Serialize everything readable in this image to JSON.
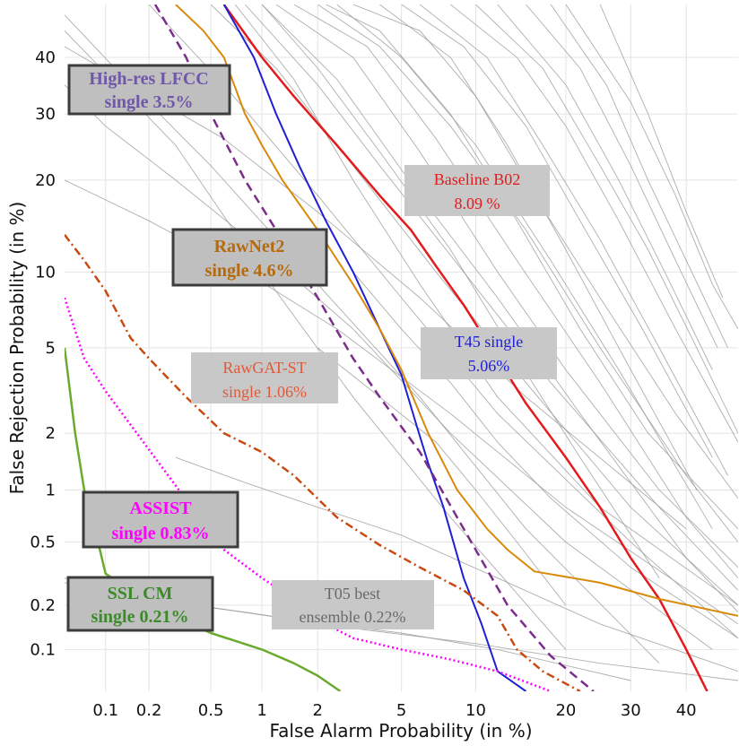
{
  "chart_data": {
    "type": "line",
    "title": "",
    "xlabel": "False Alarm Probability (in %)",
    "ylabel": "False Rejection Probability (in %)",
    "x_scale": "probit",
    "y_scale": "probit",
    "xlim": [
      0.05,
      50
    ],
    "ylim": [
      0.05,
      50
    ],
    "grid": true,
    "x_ticks": [
      {
        "value": 0.1,
        "label": "0.1"
      },
      {
        "value": 0.2,
        "label": "0.2"
      },
      {
        "value": 0.5,
        "label": "0.5"
      },
      {
        "value": 1,
        "label": "1"
      },
      {
        "value": 2,
        "label": "2"
      },
      {
        "value": 5,
        "label": "5"
      },
      {
        "value": 10,
        "label": "10"
      },
      {
        "value": 20,
        "label": "20"
      },
      {
        "value": 30,
        "label": "30"
      },
      {
        "value": 40,
        "label": "40"
      }
    ],
    "y_ticks": [
      {
        "value": 0.1,
        "label": "0.1"
      },
      {
        "value": 0.2,
        "label": "0.2"
      },
      {
        "value": 0.5,
        "label": "0.5"
      },
      {
        "value": 1,
        "label": "1"
      },
      {
        "value": 2,
        "label": "2"
      },
      {
        "value": 5,
        "label": "5"
      },
      {
        "value": 10,
        "label": "10"
      },
      {
        "value": 20,
        "label": "20"
      },
      {
        "value": 30,
        "label": "30"
      },
      {
        "value": 40,
        "label": "40"
      }
    ],
    "highlighted_series": [
      {
        "color": "#e41a1c",
        "dash": "solid",
        "width": 2.5,
        "x": [
          0.6,
          1.0,
          1.5,
          2.5,
          4,
          5.5,
          7,
          9,
          12,
          15,
          20,
          25,
          30,
          35,
          40,
          44
        ],
        "y": [
          50,
          40,
          33,
          25,
          18,
          14,
          10.5,
          7.5,
          4.5,
          2.8,
          1.5,
          0.8,
          0.4,
          0.22,
          0.1,
          0.05
        ]
      },
      {
        "color": "#1f1fd6",
        "dash": "solid",
        "width": 2,
        "x": [
          0.6,
          0.9,
          1.2,
          1.6,
          2.2,
          3,
          4,
          5,
          5.8,
          6.5,
          7.5,
          9,
          10.5,
          12,
          15
        ],
        "y": [
          50,
          40,
          30,
          22,
          15,
          10,
          6,
          3.8,
          2.2,
          1.4,
          0.8,
          0.3,
          0.15,
          0.07,
          0.05
        ]
      },
      {
        "color": "#d98a0b",
        "dash": "solid",
        "width": 2,
        "x": [
          0.3,
          0.45,
          0.6,
          0.8,
          1.0,
          1.3,
          2,
          3,
          4,
          5,
          6.5,
          8.5,
          11,
          13,
          16,
          25,
          35,
          50
        ],
        "y": [
          50,
          45,
          40,
          30,
          25,
          20,
          14,
          9,
          6,
          4,
          2,
          1,
          0.6,
          0.45,
          0.33,
          0.28,
          0.22,
          0.17
        ]
      },
      {
        "color": "#7a2d8a",
        "dash": "dash",
        "width": 2.5,
        "x": [
          0.22,
          0.35,
          0.5,
          0.8,
          1.2,
          2,
          3,
          4,
          6,
          9,
          13,
          18,
          24
        ],
        "y": [
          50,
          40,
          30,
          20,
          14,
          8,
          4.5,
          3,
          1.6,
          0.6,
          0.2,
          0.09,
          0.05
        ]
      },
      {
        "color": "#c94a10",
        "dash": "dashdot",
        "width": 2.5,
        "x": [
          0.05,
          0.07,
          0.1,
          0.15,
          0.2,
          0.35,
          0.6,
          1.0,
          1.5,
          2.5,
          4,
          6,
          9,
          12,
          14,
          17,
          22
        ],
        "y": [
          13.5,
          11,
          8.5,
          5.5,
          4.5,
          3,
          2,
          1.6,
          1.2,
          0.7,
          0.48,
          0.35,
          0.25,
          0.17,
          0.1,
          0.07,
          0.05
        ]
      },
      {
        "color": "#ff00ff",
        "dash": "dot",
        "width": 2.5,
        "x": [
          0.05,
          0.07,
          0.1,
          0.15,
          0.25,
          0.4,
          0.6,
          1.0,
          1.5,
          2,
          3,
          5,
          8,
          12,
          18
        ],
        "y": [
          8,
          4.5,
          3.2,
          2.2,
          1.3,
          0.75,
          0.45,
          0.3,
          0.22,
          0.16,
          0.12,
          0.1,
          0.085,
          0.07,
          0.05
        ]
      },
      {
        "color": "#6aab2e",
        "dash": "solid",
        "width": 2.5,
        "x": [
          0.05,
          0.06,
          0.07,
          0.08,
          0.1,
          0.15,
          0.25,
          0.5,
          1,
          1.5,
          2,
          2.6
        ],
        "y": [
          5,
          2,
          1.0,
          0.7,
          0.32,
          0.25,
          0.18,
          0.13,
          0.1,
          0.08,
          0.065,
          0.05
        ]
      }
    ],
    "background_series_color": "#9a9a9a",
    "background_series": [
      {
        "x": [
          0.05,
          0.3,
          1,
          3,
          8,
          20
        ],
        "y": [
          45,
          25,
          10,
          3,
          0.7,
          0.1
        ]
      },
      {
        "x": [
          0.05,
          0.15,
          0.5,
          2,
          6,
          15,
          35
        ],
        "y": [
          48,
          35,
          22,
          9,
          3,
          0.6,
          0.08
        ]
      },
      {
        "x": [
          0.2,
          0.6,
          2,
          5,
          12,
          30,
          50
        ],
        "y": [
          50,
          35,
          18,
          8,
          2.5,
          0.5,
          0.12
        ]
      },
      {
        "x": [
          0.5,
          1.2,
          3,
          7,
          15,
          30,
          50
        ],
        "y": [
          50,
          38,
          22,
          10,
          3.5,
          0.8,
          0.2
        ]
      },
      {
        "x": [
          0.8,
          2,
          4,
          9,
          18,
          35,
          50
        ],
        "y": [
          50,
          35,
          22,
          10,
          3.5,
          0.8,
          0.25
        ]
      },
      {
        "x": [
          1,
          2.5,
          6,
          12,
          22,
          40,
          50
        ],
        "y": [
          50,
          36,
          18,
          8,
          2.5,
          0.4,
          0.18
        ]
      },
      {
        "x": [
          1.2,
          3,
          6,
          12,
          20,
          35,
          50
        ],
        "y": [
          50,
          40,
          24,
          10,
          4,
          1.0,
          0.35
        ]
      },
      {
        "x": [
          1.5,
          3.5,
          7,
          14,
          25,
          40,
          50
        ],
        "y": [
          50,
          42,
          26,
          11,
          3.5,
          0.7,
          0.3
        ]
      },
      {
        "x": [
          2,
          4,
          8,
          15,
          25,
          40,
          50
        ],
        "y": [
          50,
          42,
          28,
          14,
          5,
          1.2,
          0.5
        ]
      },
      {
        "x": [
          2.5,
          5,
          10,
          18,
          28,
          45
        ],
        "y": [
          50,
          40,
          25,
          11,
          4,
          0.6
        ]
      },
      {
        "x": [
          3,
          6,
          10,
          16,
          25,
          38,
          50
        ],
        "y": [
          50,
          45,
          33,
          18,
          8,
          2.5,
          0.9
        ]
      },
      {
        "x": [
          4,
          8,
          13,
          20,
          30,
          42
        ],
        "y": [
          50,
          40,
          25,
          12,
          4,
          1.0
        ]
      },
      {
        "x": [
          5,
          9,
          15,
          22,
          32,
          45
        ],
        "y": [
          50,
          42,
          28,
          15,
          6,
          1.5
        ]
      },
      {
        "x": [
          6,
          11,
          17,
          25,
          35,
          48
        ],
        "y": [
          50,
          40,
          25,
          13,
          5,
          1.2
        ]
      },
      {
        "x": [
          8,
          14,
          20,
          28,
          38,
          50
        ],
        "y": [
          50,
          40,
          28,
          15,
          6,
          1.8
        ]
      },
      {
        "x": [
          10,
          17,
          25,
          33,
          42,
          50
        ],
        "y": [
          50,
          38,
          22,
          12,
          5,
          2.0
        ]
      },
      {
        "x": [
          12,
          20,
          28,
          36,
          45
        ],
        "y": [
          50,
          35,
          20,
          10,
          4
        ]
      },
      {
        "x": [
          15,
          22,
          30,
          38,
          46
        ],
        "y": [
          50,
          38,
          22,
          11,
          5
        ]
      },
      {
        "x": [
          18,
          26,
          33,
          40,
          48
        ],
        "y": [
          50,
          35,
          20,
          11,
          5
        ]
      },
      {
        "x": [
          0.05,
          0.1,
          0.3,
          1,
          3,
          8,
          20,
          45
        ],
        "y": [
          35,
          28,
          20,
          12,
          6,
          2,
          0.5,
          0.1
        ]
      },
      {
        "x": [
          0.05,
          0.2,
          0.8,
          2.5,
          8,
          20,
          50
        ],
        "y": [
          20,
          15,
          10,
          6,
          2.5,
          0.8,
          0.15
        ]
      },
      {
        "x": [
          0.05,
          0.1,
          0.4,
          1.5,
          5,
          12,
          30
        ],
        "y": [
          0.3,
          0.25,
          0.2,
          0.16,
          0.13,
          0.1,
          0.06
        ]
      },
      {
        "x": [
          0.05,
          0.2,
          0.8,
          3,
          10,
          25,
          50
        ],
        "y": [
          0.28,
          0.22,
          0.18,
          0.14,
          0.11,
          0.08,
          0.06
        ]
      },
      {
        "x": [
          0.3,
          0.8,
          2,
          5,
          12,
          25,
          50
        ],
        "y": [
          1.5,
          1.1,
          0.8,
          0.55,
          0.3,
          0.15,
          0.07
        ]
      },
      {
        "x": [
          2,
          4,
          7,
          10,
          14,
          20
        ],
        "y": [
          5,
          3,
          1.8,
          1.0,
          0.5,
          0.2
        ]
      },
      {
        "x": [
          3,
          5,
          8,
          12,
          18,
          30,
          50
        ],
        "y": [
          10,
          6,
          3.5,
          1.8,
          0.9,
          0.35,
          0.12
        ]
      },
      {
        "x": [
          0.05,
          0.15,
          0.6,
          2,
          6,
          15,
          40
        ],
        "y": [
          42,
          35,
          26,
          16,
          8,
          3,
          0.6
        ]
      },
      {
        "x": [
          0.7,
          1.5,
          3,
          6,
          12,
          25,
          50
        ],
        "y": [
          50,
          36,
          20,
          9,
          3,
          0.8,
          0.2
        ]
      },
      {
        "x": [
          1,
          2,
          4,
          8,
          14,
          22,
          35
        ],
        "y": [
          50,
          38,
          24,
          12,
          4.5,
          1.5,
          0.3
        ]
      },
      {
        "x": [
          20,
          30,
          38,
          45,
          50
        ],
        "y": [
          50,
          32,
          18,
          9,
          6
        ]
      },
      {
        "x": [
          25,
          33,
          40,
          47
        ],
        "y": [
          50,
          30,
          16,
          8
        ]
      },
      {
        "x": [
          2.2,
          4,
          8,
          14,
          22,
          33,
          50
        ],
        "y": [
          50,
          45,
          30,
          15,
          6,
          2,
          0.6
        ]
      }
    ],
    "annotations": [
      {
        "key": "lfcc",
        "lines": [
          "High-res LFCC",
          "single 3.5%"
        ],
        "color": "#7057a8",
        "bold": true,
        "box": "dark"
      },
      {
        "key": "rawnet2",
        "lines": [
          "RawNet2",
          "single 4.6%"
        ],
        "color": "#b56a0c",
        "bold": true,
        "box": "dark"
      },
      {
        "key": "rawgat",
        "lines": [
          "RawGAT-ST",
          "single 1.06%"
        ],
        "color": "#e05a3a",
        "bold": false,
        "box": "light"
      },
      {
        "key": "assist",
        "lines": [
          "ASSIST",
          "single 0.83%"
        ],
        "color": "#ff00ff",
        "bold": true,
        "box": "dark"
      },
      {
        "key": "sslcm",
        "lines": [
          "SSL CM",
          "single 0.21%"
        ],
        "color": "#3d8a2a",
        "bold": true,
        "box": "dark"
      },
      {
        "key": "t05",
        "lines": [
          "T05  best",
          "ensemble 0.22%"
        ],
        "color": "#6a6a6a",
        "bold": false,
        "box": "light"
      },
      {
        "key": "baseline",
        "lines": [
          "Baseline B02",
          "8.09 %"
        ],
        "color": "#e41a1c",
        "bold": false,
        "box": "light"
      },
      {
        "key": "t45",
        "lines": [
          "T45 single",
          "5.06%"
        ],
        "color": "#1f1fd6",
        "bold": false,
        "box": "light"
      }
    ]
  }
}
